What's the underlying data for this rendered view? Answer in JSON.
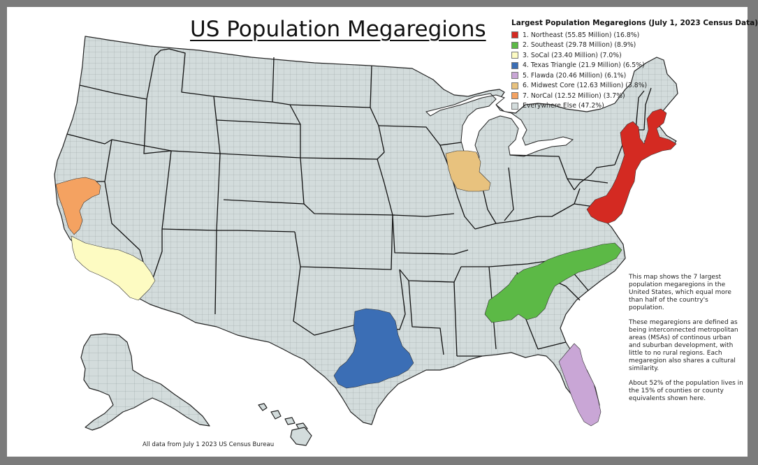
{
  "title": "US Population Megaregions",
  "legend": {
    "title": "Largest Population Megaregions (July 1, 2023 Census Data)",
    "items": [
      {
        "label": "1. Northeast (55.85 Million) (16.8%)",
        "color": "#d42a22"
      },
      {
        "label": "2.  Southeast (29.78 Million) (8.9%)",
        "color": "#5cb946"
      },
      {
        "label": "3.  SoCal (23.40 Million) (7.0%)",
        "color": "#fdfbc2"
      },
      {
        "label": "4. Texas Triangle (21.9 Million) (6.5%)",
        "color": "#3b6eb5"
      },
      {
        "label": "5. Flawda (20.46 Million) (6.1%)",
        "color": "#c9a6d6"
      },
      {
        "label": "6. Midwest Core (12.63 Million) (3.8%)",
        "color": "#e8c27e"
      },
      {
        "label": "7. NorCal (12.52 Million) (3.7%)",
        "color": "#f4a261"
      },
      {
        "label": "Everywhere Else (47.2%)",
        "color": "#d3dcdc"
      }
    ]
  },
  "notes": [
    "This map shows the 7 largest population megaregions in the United States, which equal more than half of the country's population.",
    "These megaregions are defined as being interconnected metropolitan areas (MSAs) of continous urban and suburban development, with little to no rural regions. Each megaregion also shares a cultural similarity.",
    "About 52% of the population lives in the 15% of counties or county equivalents shown here."
  ],
  "source_note": "All data from July 1 2023 US Census Bureau",
  "map_regions": [
    {
      "id": "northeast",
      "legend_index": 0
    },
    {
      "id": "southeast",
      "legend_index": 1
    },
    {
      "id": "socal",
      "legend_index": 2
    },
    {
      "id": "texas-triangle",
      "legend_index": 3
    },
    {
      "id": "flawda",
      "legend_index": 4
    },
    {
      "id": "midwest-core",
      "legend_index": 5
    },
    {
      "id": "norcal",
      "legend_index": 6
    }
  ]
}
